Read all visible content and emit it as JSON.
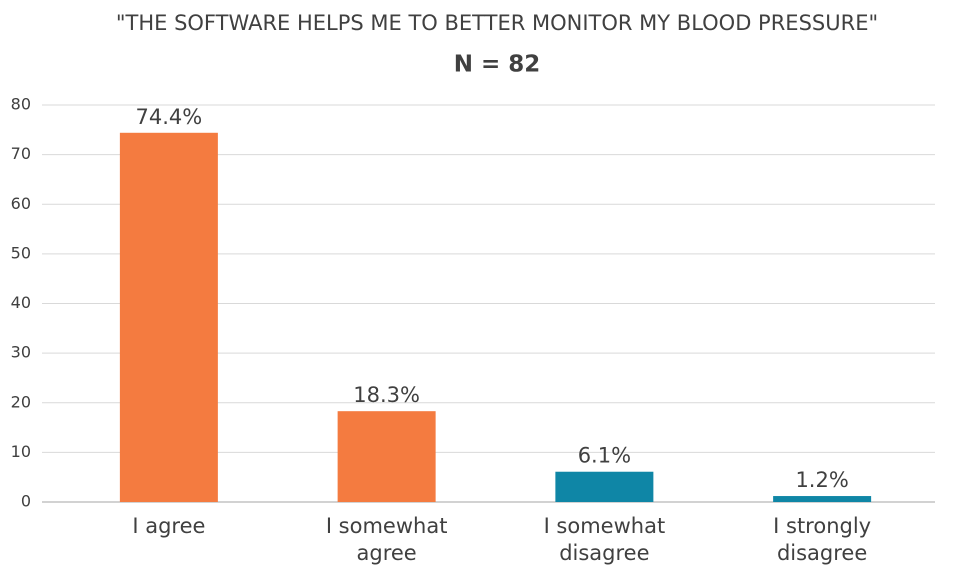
{
  "chart_data": {
    "type": "bar",
    "title": "\"THE SOFTWARE HELPS ME TO BETTER MONITOR MY BLOOD PRESSURE\"",
    "subtitle": "N = 82",
    "categories": [
      "I agree",
      "I somewhat agree",
      "I somewhat disagree",
      "I strongly disagree"
    ],
    "values": [
      74.4,
      18.3,
      6.1,
      1.2
    ],
    "value_labels": [
      "74.4%",
      "18.3%",
      "6.1%",
      "1.2%"
    ],
    "colors": [
      "#f47b40",
      "#f47b40",
      "#0f86a6",
      "#0f86a6"
    ],
    "ylim": [
      0,
      80
    ],
    "yticks": [
      0,
      10,
      20,
      30,
      40,
      50,
      60,
      70,
      80
    ],
    "grid": true
  }
}
